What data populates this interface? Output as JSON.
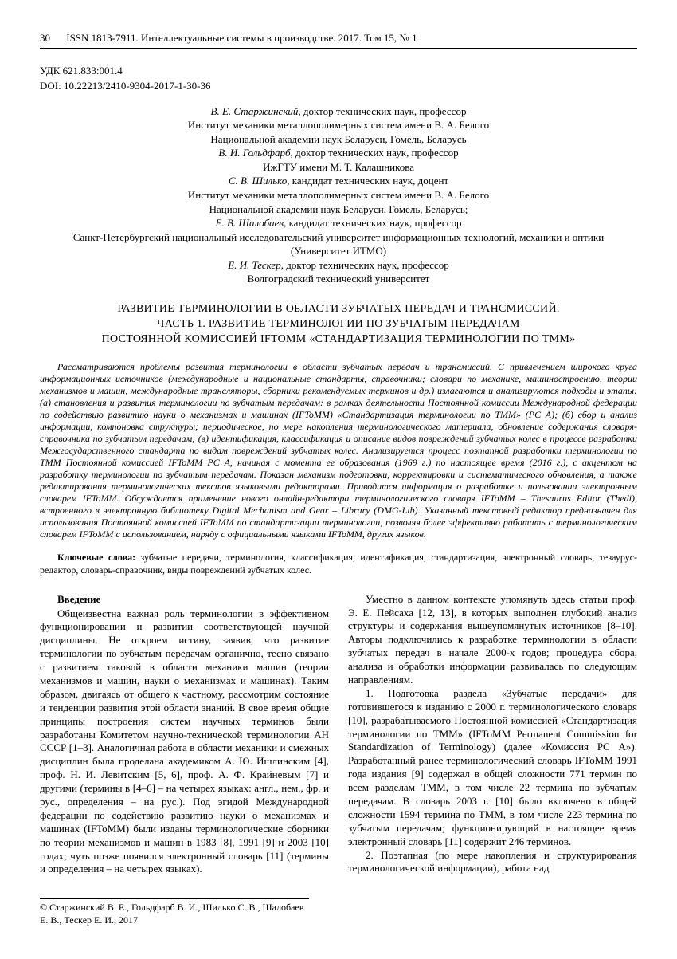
{
  "header": {
    "page_number": "30",
    "journal_info": "ISSN 1813-7911. Интеллектуальные системы в производстве. 2017. Том 15, № 1"
  },
  "meta": {
    "udk": "УДК 621.833:001.4",
    "doi": "DOI: 10.22213/2410-9304-2017-1-30-36"
  },
  "authors": {
    "line1_name": "В. Е. Старжинский",
    "line1_title": ", доктор технических наук, профессор",
    "line2": "Институт механики металлополимерных систем имени В. А. Белого",
    "line3": "Национальной академии наук Беларуси, Гомель, Беларусь",
    "line4_name": "В. И. Гольдфарб",
    "line4_title": ", доктор технических наук, профессор",
    "line5": "ИжГТУ имени М. Т. Калашникова",
    "line6_name": "С. В. Шилько",
    "line6_title": ", кандидат технических наук, доцент",
    "line7": "Институт механики металлополимерных систем имени В. А. Белого",
    "line8": "Национальной академии наук Беларуси, Гомель, Беларусь;",
    "line9_name": "Е. В. Шалобаев",
    "line9_title": ", кандидат технических наук, профессор",
    "line10": "Санкт-Петербургский национальный исследовательский университет информационных технологий, механики и оптики",
    "line11": "(Университет ИТМО)",
    "line12_name": "Е. И. Тескер",
    "line12_title": ", доктор технических наук, профессор",
    "line13": "Волгоградский технический университет"
  },
  "title": {
    "line1": "РАЗВИТИЕ ТЕРМИНОЛОГИИ В ОБЛАСТИ ЗУБЧАТЫХ ПЕРЕДАЧ И ТРАНСМИССИЙ.",
    "line2": "ЧАСТЬ 1. РАЗВИТИЕ ТЕРМИНОЛОГИИ ПО ЗУБЧАТЫМ ПЕРЕДАЧАМ",
    "line3": "ПОСТОЯННОЙ КОМИССИЕЙ IFTOMM «СТАНДАРТИЗАЦИЯ ТЕРМИНОЛОГИИ ПО ТММ»"
  },
  "abstract": "Рассматриваются проблемы развития терминологии в области зубчатых передач и трансмиссий. С привлечением широкого круга информационных источников (международные и национальные стандарты, справочники; словари по механике, машиностроению, теории механизмов и машин, международные трансляторы, сборники рекомендуемых терминов и др.) излагаются и анализируются подходы и этапы: (а) становления и развития терминологии по зубчатым передачам: в рамках деятельности Постоянной комиссии Международной федерации по содействию развитию науки о механизмах и машинах (IFToMM) «Стандартизация терминологии по ТММ» (PC А); (б) сбор и анализ информации, компоновка структуры; периодическое, по мере накопления терминологического материала, обновление содержания словаря-справочника по зубчатым передачам; (в) идентификация, классификация и описание видов повреждений зубчатых колес в процессе разработки Межгосударственного стандарта по видам повреждений зубчатых колес. Анализируется процесс поэтапной разработки терминологии по ТММ Постоянной комиссией IFToMM PC A, начиная с момента ее образования (1969 г.) по настоящее время (2016 г.), с акцентом на разработку терминологии по зубчатым передачам. Показан механизм подготовки, корректировки и систематического обновления, а также редактирования терминологических текстов языковыми редакторами. Приводится информация о разработке и пользовании электронным словарем IFToMM. Обсуждается применение нового онлайн-редактора терминологического словаря IFToMM – Thesaurus Editor (Thedi), встроенного в электронную библиотеку Digital Mechanism and Gear – Library (DMG-Lib). Указанный текстовый редактор предназначен для использования Постоянной комиссией IFToMM по стандартизации терминологии, позволяя более эффективно работать с терминологическим словарем IFToMM с использованием, наряду с официальными языками IFToMM, других языков.",
  "keywords": {
    "label": "Ключевые слова:",
    "text": " зубчатые передачи, терминология, классификация, идентификация, стандартизация, электронный словарь, тезаурус-редактор, словарь-справочник, виды повреждений зубчатых колес."
  },
  "body": {
    "intro_heading": "Введение",
    "para1": "Общеизвестна важная роль терминологии в эффективном функционировании и развитии соответствующей научной дисциплины. Не откроем истину, заявив, что развитие терминологии по зубчатым передачам органично, тесно связано с развитием таковой в области механики машин (теории механизмов и машин, науки о механизмах и машинах). Таким образом, двигаясь от общего к частному, рассмотрим состояние и тенденции развития этой области знаний. В свое время общие принципы построения систем научных терминов были разработаны Комитетом научно-технической терминологии АН СССР [1–3]. Аналогичная работа в области механики и смежных дисциплин была проделана академиком А. Ю. Ишлинским [4], проф. Н. И. Левитским [5, 6], проф. А. Ф. Крайневым [7] и другими (термины в [4–6] – на четырех языках: англ., нем., фр. и рус., определения – на рус.). Под эгидой Международной федерации по содействию развитию науки о механизмах и машинах (IFToMM) были изданы терминологические сборники по теории механизмов и машин в 1983 [8], 1991 [9] и 2003 [10] годах; чуть позже появился электронный словарь [11] (термины и определения – на четырех языках).",
    "para2": "Уместно в данном контексте упомянуть здесь статьи проф. Э. Е. Пейсаха [12, 13], в которых выполнен глубокий анализ структуры и содержания вышеупомянутых источников [8–10]. Авторы подключились к разработке терминологии в области зубчатых передач в начале 2000-х годов; процедура сбора, анализа и обработки информации развивалась по следующим направлениям.",
    "para3": "1. Подготовка раздела «Зубчатые передачи» для готовившегося к изданию с 2000 г. терминологического словаря [10], разрабатываемого Постоянной комиссией «Стандартизация терминологии по ТММ» (IFToMM Permanent Commission for Standardization of Terminology) (далее «Комиссия PC А»). Разработанный ранее терминологический словарь IFToMM 1991 года издания [9] содержал в общей сложности 771 термин по всем разделам ТММ, в том числе 22 термина по зубчатым передачам. В словарь 2003 г. [10] было включено в общей сложности 1594 термина по ТММ, в том числе 223 термина по зубчатым передачам; функционирующий в настоящее время электронный словарь [11] содержит 246 терминов.",
    "para4": "2. Поэтапная (по мере накопления и структурирования терминологической информации), работа над"
  },
  "footer": {
    "copyright": "© Старжинский В. Е., Гольдфарб В. И., Шилько С. В., Шалобаев Е. В., Тескер Е. И., 2017"
  }
}
